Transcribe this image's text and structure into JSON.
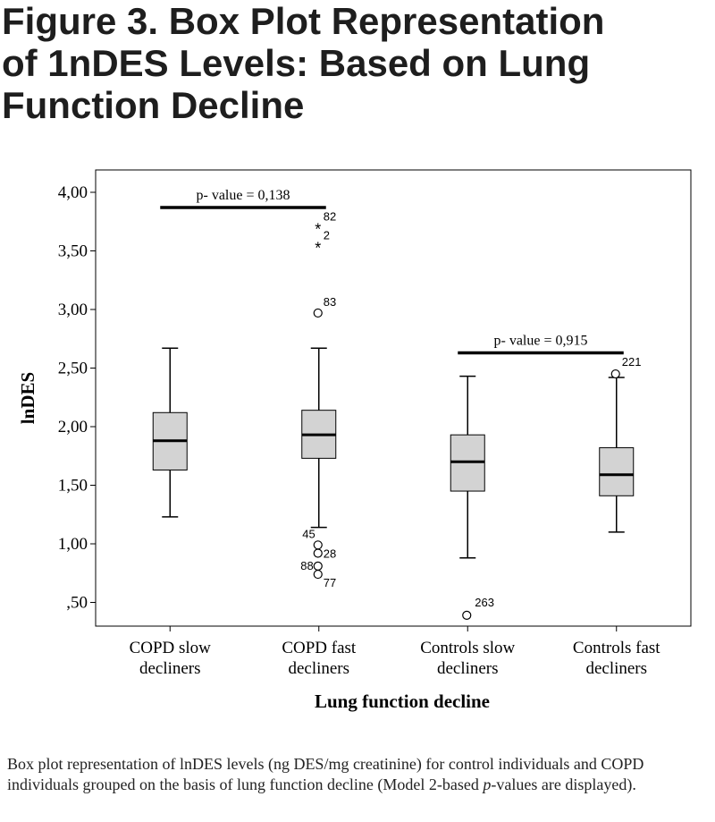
{
  "figure": {
    "title_lines": [
      "Figure 3. Box Plot Representation",
      "of 1nDES Levels: Based on Lung",
      "Function Decline"
    ],
    "caption_pre": "Box plot representation of lnDES levels (ng DES/mg creatinine) for control individuals and COPD individuals grouped on the basis of lung function decline (Model 2-based ",
    "caption_italic": "p",
    "caption_post": "-values are displayed)."
  },
  "chart_data": {
    "type": "box",
    "xlabel": "Lung function decline",
    "ylabel": "lnDES",
    "ylim": [
      0.3,
      4.15
    ],
    "yticks": [
      0.5,
      1.0,
      1.5,
      2.0,
      2.5,
      3.0,
      3.5,
      4.0
    ],
    "ytick_labels": [
      ",50",
      "1,00",
      "1,50",
      "2,00",
      "2,50",
      "3,00",
      "3,50",
      "4,00"
    ],
    "box_fill": "#d3d3d3",
    "categories": [
      {
        "label_lines": [
          "COPD slow",
          "decliners"
        ],
        "q1": 1.63,
        "median": 1.88,
        "q3": 2.12,
        "whisker_low": 1.23,
        "whisker_high": 2.67,
        "outliers": []
      },
      {
        "label_lines": [
          "COPD fast",
          "decliners"
        ],
        "q1": 1.73,
        "median": 1.93,
        "q3": 2.14,
        "whisker_low": 1.14,
        "whisker_high": 2.67,
        "outliers": [
          {
            "id": "82",
            "value": 3.7,
            "marker": "star"
          },
          {
            "id": "2",
            "value": 3.54,
            "marker": "star"
          },
          {
            "id": "83",
            "value": 2.97,
            "marker": "circle"
          },
          {
            "id": "45",
            "value": 0.99,
            "marker": "circle"
          },
          {
            "id": "28",
            "value": 0.92,
            "marker": "circle"
          },
          {
            "id": "88",
            "value": 0.81,
            "marker": "circle"
          },
          {
            "id": "77",
            "value": 0.74,
            "marker": "circle"
          }
        ]
      },
      {
        "label_lines": [
          "Controls slow",
          "decliners"
        ],
        "q1": 1.45,
        "median": 1.7,
        "q3": 1.93,
        "whisker_low": 0.88,
        "whisker_high": 2.43,
        "outliers": [
          {
            "id": "263",
            "value": 0.39,
            "marker": "circle"
          }
        ]
      },
      {
        "label_lines": [
          "Controls fast",
          "decliners"
        ],
        "q1": 1.41,
        "median": 1.59,
        "q3": 1.82,
        "whisker_low": 1.1,
        "whisker_high": 2.42,
        "outliers": [
          {
            "id": "221",
            "value": 2.45,
            "marker": "circle"
          }
        ]
      }
    ],
    "annotations": [
      {
        "text": "p- value  = 0,138",
        "from": 0,
        "to": 1,
        "y": 3.87
      },
      {
        "text": "p- value  = 0,915",
        "from": 2,
        "to": 3,
        "y": 2.63
      }
    ]
  }
}
